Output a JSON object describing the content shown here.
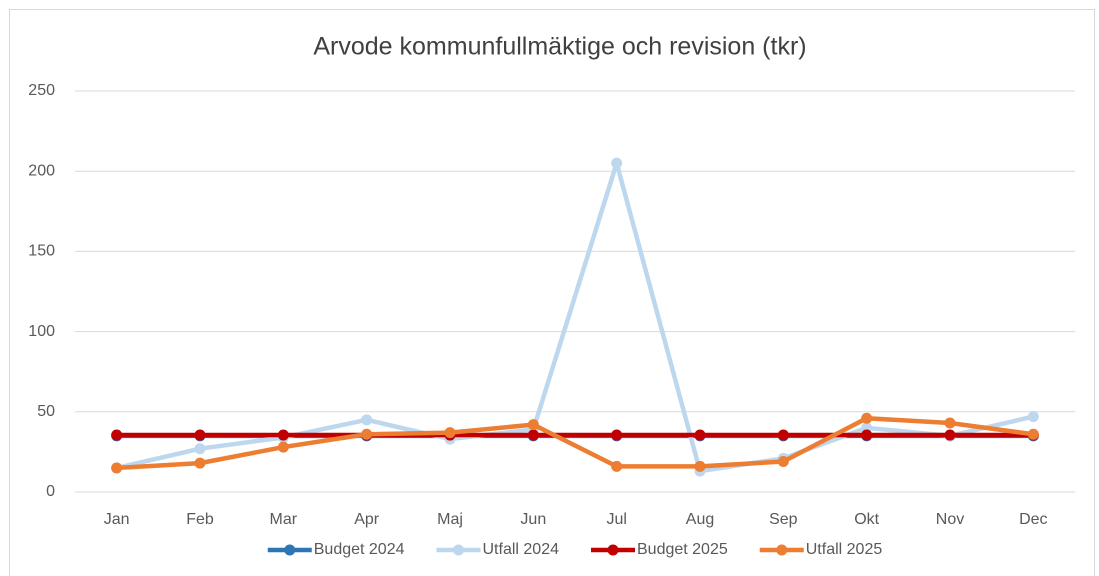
{
  "chart_data": {
    "type": "line",
    "title": "Arvode kommunfullmäktige och revision (tkr)",
    "categories": [
      "Jan",
      "Feb",
      "Mar",
      "Apr",
      "Maj",
      "Jun",
      "Jul",
      "Aug",
      "Sep",
      "Okt",
      "Nov",
      "Dec"
    ],
    "series": [
      {
        "name": "Budget 2024",
        "color": "#2e75b6",
        "values": [
          35,
          35,
          35,
          35,
          35,
          35,
          35,
          35,
          35,
          35,
          35,
          35
        ]
      },
      {
        "name": "Utfall 2024",
        "color": "#bdd7ee",
        "values": [
          15,
          27,
          34,
          45,
          33,
          39,
          205,
          13,
          21,
          40,
          35,
          47
        ]
      },
      {
        "name": "Budget 2025",
        "color": "#c00000",
        "values": [
          35.5,
          35.5,
          35.5,
          35.5,
          35.5,
          35.5,
          35.5,
          35.5,
          35.5,
          35.5,
          35.5,
          35.5
        ]
      },
      {
        "name": "Utfall 2025",
        "color": "#ed7d31",
        "values": [
          15,
          18,
          28,
          36,
          37,
          42,
          16,
          16,
          19,
          46,
          43,
          36
        ]
      }
    ],
    "ylim": [
      0,
      250
    ],
    "yticks": [
      0,
      50,
      100,
      150,
      200,
      250
    ],
    "grid": true,
    "legend": "bottom"
  }
}
